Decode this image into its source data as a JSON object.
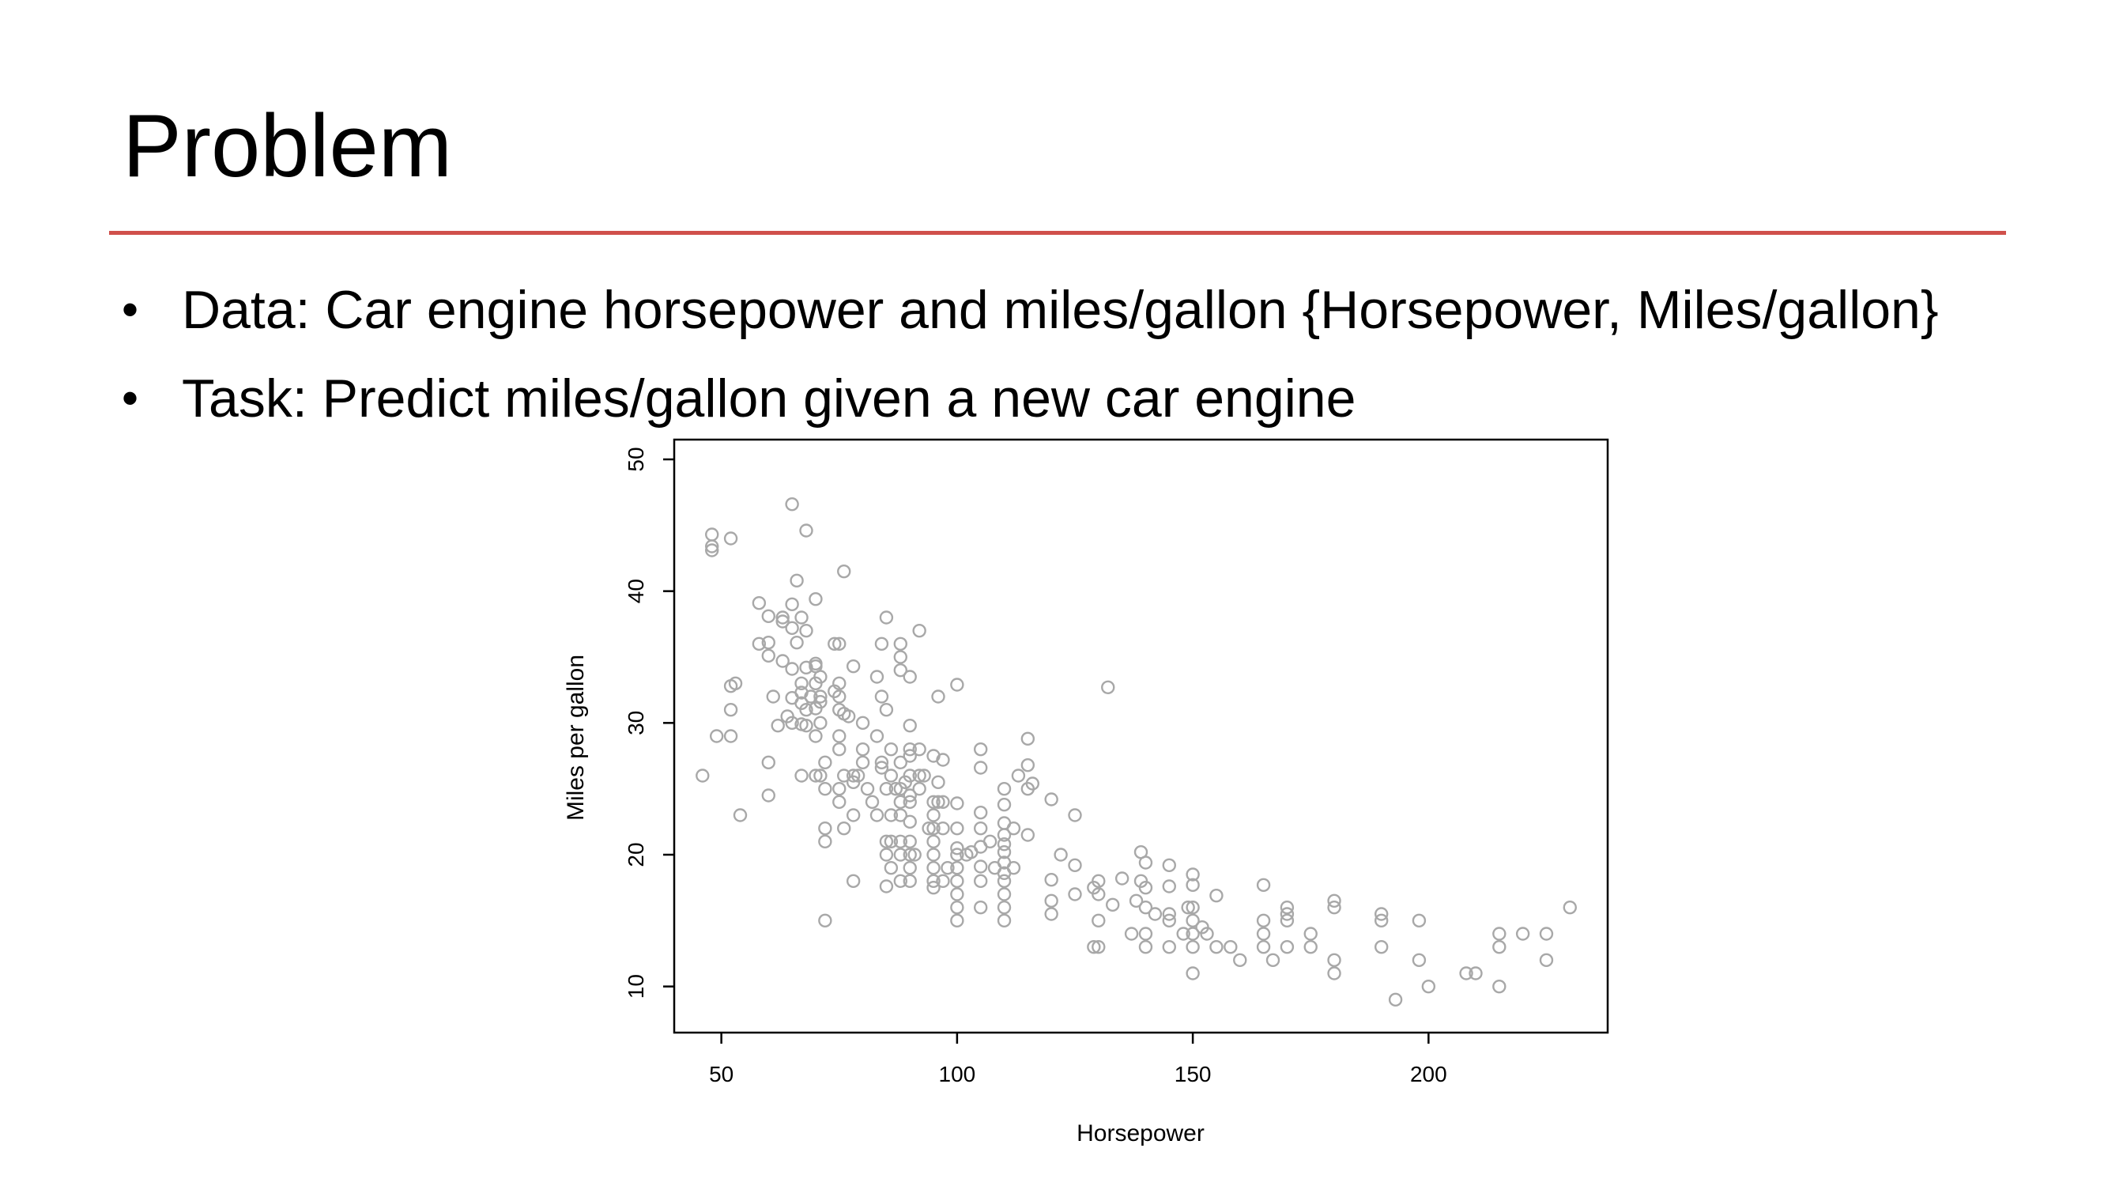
{
  "slide": {
    "title": "Problem",
    "accent_color": "#d0504b",
    "bullets": [
      {
        "label": "Data: Car engine horsepower and miles/gallon {Horsepower, Miles/gallon}"
      },
      {
        "label": "Task: Predict miles/gallon given a new car engine"
      }
    ]
  },
  "chart_data": {
    "type": "scatter",
    "title": "",
    "xlabel": "Horsepower",
    "ylabel": "Miles per gallon",
    "xlim": [
      40,
      238
    ],
    "ylim": [
      6.5,
      51.5
    ],
    "xticks": [
      50,
      100,
      150,
      200
    ],
    "yticks": [
      10,
      20,
      30,
      40,
      50
    ],
    "grid": false,
    "marker": "open-circle",
    "point_color": "#a8a8a8",
    "points": [
      [
        46,
        26
      ],
      [
        48,
        44.3
      ],
      [
        48,
        43.4
      ],
      [
        48,
        43.1
      ],
      [
        49,
        29
      ],
      [
        52,
        44
      ],
      [
        52,
        32.8
      ],
      [
        52,
        31
      ],
      [
        52,
        29
      ],
      [
        53,
        33
      ],
      [
        54,
        23
      ],
      [
        58,
        39.1
      ],
      [
        58,
        36
      ],
      [
        60,
        38.1
      ],
      [
        60,
        36.1
      ],
      [
        60,
        35.1
      ],
      [
        60,
        27
      ],
      [
        60,
        24.5
      ],
      [
        61,
        32
      ],
      [
        62,
        29.8
      ],
      [
        63,
        37.7
      ],
      [
        63,
        38
      ],
      [
        63,
        34.7
      ],
      [
        64,
        30.5
      ],
      [
        65,
        39
      ],
      [
        65,
        31.9
      ],
      [
        65,
        34.1
      ],
      [
        65,
        37.2
      ],
      [
        65,
        30
      ],
      [
        65,
        46.6
      ],
      [
        66,
        36.1
      ],
      [
        66,
        40.8
      ],
      [
        67,
        31.5
      ],
      [
        67,
        29.9
      ],
      [
        67,
        33
      ],
      [
        67,
        38
      ],
      [
        67,
        32.3
      ],
      [
        67,
        26
      ],
      [
        68,
        37
      ],
      [
        68,
        34.2
      ],
      [
        68,
        31
      ],
      [
        68,
        29.8
      ],
      [
        68,
        44.6
      ],
      [
        69,
        32
      ],
      [
        70,
        31.1
      ],
      [
        70,
        39.4
      ],
      [
        70,
        26
      ],
      [
        70,
        33
      ],
      [
        70,
        34.5
      ],
      [
        70,
        29
      ],
      [
        70,
        34.3
      ],
      [
        71,
        32
      ],
      [
        71,
        30
      ],
      [
        71,
        31.6
      ],
      [
        71,
        33.5
      ],
      [
        71,
        26
      ],
      [
        72,
        27
      ],
      [
        72,
        25
      ],
      [
        72,
        22
      ],
      [
        72,
        21
      ],
      [
        72,
        15
      ],
      [
        74,
        32.4
      ],
      [
        74,
        36
      ],
      [
        75,
        31
      ],
      [
        75,
        36
      ],
      [
        75,
        28
      ],
      [
        75,
        29
      ],
      [
        75,
        25
      ],
      [
        75,
        24
      ],
      [
        75,
        33
      ],
      [
        75,
        32
      ],
      [
        76,
        41.5
      ],
      [
        76,
        30.7
      ],
      [
        76,
        22
      ],
      [
        76,
        26
      ],
      [
        77,
        30.5
      ],
      [
        78,
        25.5
      ],
      [
        78,
        34.3
      ],
      [
        78,
        26
      ],
      [
        78,
        23
      ],
      [
        78,
        18
      ],
      [
        79,
        26
      ],
      [
        80,
        27
      ],
      [
        80,
        30
      ],
      [
        80,
        28
      ],
      [
        81,
        25
      ],
      [
        82,
        24
      ],
      [
        83,
        23
      ],
      [
        83,
        33.5
      ],
      [
        83,
        29
      ],
      [
        84,
        27
      ],
      [
        84,
        26.6
      ],
      [
        84,
        36
      ],
      [
        84,
        32
      ],
      [
        85,
        31
      ],
      [
        85,
        38
      ],
      [
        85,
        25
      ],
      [
        85,
        20
      ],
      [
        85,
        21
      ],
      [
        85,
        17.6
      ],
      [
        86,
        26
      ],
      [
        86,
        28
      ],
      [
        86,
        23
      ],
      [
        86,
        21
      ],
      [
        86,
        19
      ],
      [
        87,
        25
      ],
      [
        88,
        27
      ],
      [
        88,
        25
      ],
      [
        88,
        24
      ],
      [
        88,
        23
      ],
      [
        88,
        20
      ],
      [
        88,
        18
      ],
      [
        88,
        21
      ],
      [
        88,
        34
      ],
      [
        88,
        35
      ],
      [
        88,
        36
      ],
      [
        89,
        25.5
      ],
      [
        90,
        29.8
      ],
      [
        90,
        28
      ],
      [
        90,
        27.5
      ],
      [
        90,
        26
      ],
      [
        90,
        24.5
      ],
      [
        90,
        24
      ],
      [
        90,
        22.5
      ],
      [
        90,
        21
      ],
      [
        90,
        20
      ],
      [
        90,
        19
      ],
      [
        90,
        18
      ],
      [
        90,
        33.5
      ],
      [
        91,
        20
      ],
      [
        92,
        26
      ],
      [
        92,
        28
      ],
      [
        92,
        37
      ],
      [
        92,
        25
      ],
      [
        93,
        26
      ],
      [
        94,
        22
      ],
      [
        95,
        27.5
      ],
      [
        95,
        24
      ],
      [
        95,
        23
      ],
      [
        95,
        22
      ],
      [
        95,
        21
      ],
      [
        95,
        20
      ],
      [
        95,
        19
      ],
      [
        95,
        18
      ],
      [
        95,
        17.5
      ],
      [
        96,
        24
      ],
      [
        96,
        25.5
      ],
      [
        96,
        32
      ],
      [
        97,
        24
      ],
      [
        97,
        27.2
      ],
      [
        97,
        22
      ],
      [
        97,
        18
      ],
      [
        98,
        19
      ],
      [
        100,
        23.9
      ],
      [
        100,
        22
      ],
      [
        100,
        20.5
      ],
      [
        100,
        20
      ],
      [
        100,
        19
      ],
      [
        100,
        18
      ],
      [
        100,
        17
      ],
      [
        100,
        16
      ],
      [
        100,
        15
      ],
      [
        100,
        32.9
      ],
      [
        102,
        20
      ],
      [
        103,
        20.2
      ],
      [
        105,
        28
      ],
      [
        105,
        26.6
      ],
      [
        105,
        23.2
      ],
      [
        105,
        22
      ],
      [
        105,
        20.6
      ],
      [
        105,
        19.1
      ],
      [
        105,
        18
      ],
      [
        105,
        16
      ],
      [
        107,
        21
      ],
      [
        108,
        19
      ],
      [
        110,
        25
      ],
      [
        110,
        23.8
      ],
      [
        110,
        22.4
      ],
      [
        110,
        21.5
      ],
      [
        110,
        20.8
      ],
      [
        110,
        20.2
      ],
      [
        110,
        19.4
      ],
      [
        110,
        18.6
      ],
      [
        110,
        18
      ],
      [
        110,
        17
      ],
      [
        110,
        16
      ],
      [
        110,
        15
      ],
      [
        112,
        22
      ],
      [
        112,
        19
      ],
      [
        113,
        26
      ],
      [
        115,
        28.8
      ],
      [
        115,
        26.8
      ],
      [
        115,
        25
      ],
      [
        115,
        21.5
      ],
      [
        116,
        25.4
      ],
      [
        120,
        24.2
      ],
      [
        120,
        18.1
      ],
      [
        120,
        16.5
      ],
      [
        120,
        15.5
      ],
      [
        122,
        20
      ],
      [
        125,
        23
      ],
      [
        125,
        19.2
      ],
      [
        125,
        17
      ],
      [
        129,
        17.5
      ],
      [
        129,
        13
      ],
      [
        130,
        18
      ],
      [
        130,
        17
      ],
      [
        130,
        15
      ],
      [
        130,
        13
      ],
      [
        132,
        32.7
      ],
      [
        133,
        16.2
      ],
      [
        135,
        18.2
      ],
      [
        137,
        14
      ],
      [
        138,
        16.5
      ],
      [
        139,
        20.2
      ],
      [
        139,
        18
      ],
      [
        140,
        19.4
      ],
      [
        140,
        17.5
      ],
      [
        140,
        16
      ],
      [
        140,
        14
      ],
      [
        140,
        13
      ],
      [
        142,
        15.5
      ],
      [
        145,
        19.2
      ],
      [
        145,
        17.6
      ],
      [
        145,
        15.5
      ],
      [
        145,
        15
      ],
      [
        145,
        13
      ],
      [
        148,
        14
      ],
      [
        149,
        16
      ],
      [
        150,
        18.5
      ],
      [
        150,
        17.7
      ],
      [
        150,
        16
      ],
      [
        150,
        15
      ],
      [
        150,
        14
      ],
      [
        150,
        13
      ],
      [
        150,
        11
      ],
      [
        152,
        14.5
      ],
      [
        153,
        14
      ],
      [
        155,
        16.9
      ],
      [
        155,
        13
      ],
      [
        158,
        13
      ],
      [
        160,
        12
      ],
      [
        165,
        17.7
      ],
      [
        165,
        15
      ],
      [
        165,
        14
      ],
      [
        165,
        13
      ],
      [
        167,
        12
      ],
      [
        170,
        16
      ],
      [
        170,
        15.5
      ],
      [
        170,
        15
      ],
      [
        170,
        13
      ],
      [
        175,
        14
      ],
      [
        175,
        13
      ],
      [
        180,
        16.5
      ],
      [
        180,
        16
      ],
      [
        180,
        12
      ],
      [
        180,
        11
      ],
      [
        190,
        15.5
      ],
      [
        190,
        15
      ],
      [
        190,
        13
      ],
      [
        193,
        9
      ],
      [
        198,
        15
      ],
      [
        198,
        12
      ],
      [
        200,
        10
      ],
      [
        208,
        11
      ],
      [
        210,
        11
      ],
      [
        215,
        14
      ],
      [
        215,
        13
      ],
      [
        215,
        10
      ],
      [
        220,
        14
      ],
      [
        225,
        14
      ],
      [
        225,
        12
      ],
      [
        230,
        16
      ]
    ]
  }
}
